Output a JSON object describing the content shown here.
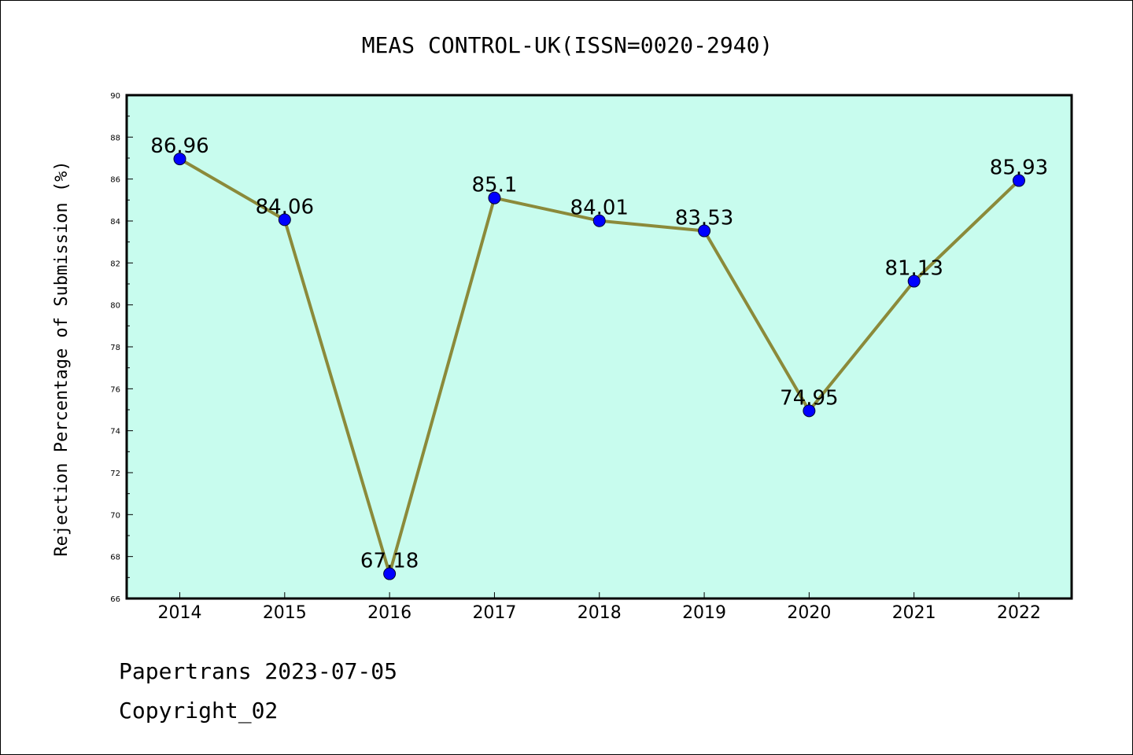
{
  "chart_data": {
    "type": "line",
    "title": "MEAS CONTROL-UK(ISSN=0020-2940)",
    "xlabel": "",
    "ylabel": "Rejection Percentage of Submission (%)",
    "categories": [
      "2014",
      "2015",
      "2016",
      "2017",
      "2018",
      "2019",
      "2020",
      "2021",
      "2022"
    ],
    "values": [
      86.96,
      84.06,
      67.18,
      85.1,
      84.01,
      83.53,
      74.95,
      81.13,
      85.93
    ],
    "data_labels": [
      "86.96",
      "84.06",
      "67.18",
      "85.1",
      "84.01",
      "83.53",
      "74.95",
      "81.13",
      "85.93"
    ],
    "ylim": [
      66,
      90
    ],
    "yticks": [
      "66",
      "68",
      "70",
      "72",
      "74",
      "76",
      "78",
      "80",
      "82",
      "84",
      "86",
      "88",
      "90"
    ],
    "grid": false,
    "colors": {
      "plot_background": "#c8fcee",
      "line": "#8b8a3a",
      "marker": "#0000ff"
    }
  },
  "footer": {
    "line1": "Papertrans 2023-07-05",
    "line2": "Copyright_02"
  }
}
